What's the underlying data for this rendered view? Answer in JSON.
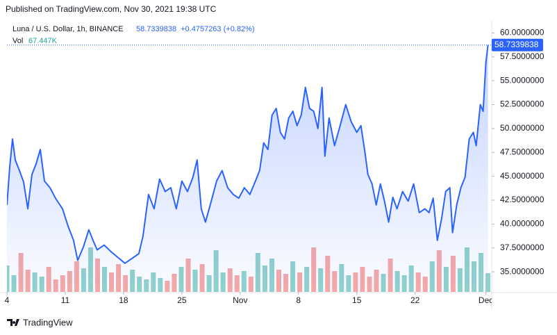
{
  "chart_data": {
    "type": "line",
    "published": "Published on TradingView.com, Nov 30, 2021 19:38 UTC",
    "title": "Luna / U.S. Dollar, 1h, BINANCE",
    "last_price": 58.7339838,
    "change": "+0.4757263 (+0.82%)",
    "brand": "TradingView",
    "xlim": [
      0,
      58.2
    ],
    "xticks": [
      {
        "value": 0,
        "label": "4"
      },
      {
        "value": 7,
        "label": "11"
      },
      {
        "value": 14,
        "label": "18"
      },
      {
        "value": 21,
        "label": "25"
      },
      {
        "value": 28,
        "label": "Nov"
      },
      {
        "value": 35,
        "label": "8"
      },
      {
        "value": 42,
        "label": "15"
      },
      {
        "value": 49,
        "label": "22"
      },
      {
        "value": 57.5,
        "label": "Dec"
      }
    ],
    "ylim": [
      32.9,
      60.9
    ],
    "yticks": [
      {
        "value": 35,
        "label": "35.0000000"
      },
      {
        "value": 37.5,
        "label": "37.5000000"
      },
      {
        "value": 40,
        "label": "40.0000000"
      },
      {
        "value": 42.5,
        "label": "42.5000000"
      },
      {
        "value": 45,
        "label": "45.0000000"
      },
      {
        "value": 47.5,
        "label": "47.5000000"
      },
      {
        "value": 50,
        "label": "50.0000000"
      },
      {
        "value": 52.5,
        "label": "52.5000000"
      },
      {
        "value": 55,
        "label": "55.0000000"
      },
      {
        "value": 57.5,
        "label": "57.5000000"
      },
      {
        "value": 60,
        "label": "60.0000000"
      }
    ],
    "grid": false,
    "x": [
      0,
      0.33,
      0.67,
      1,
      1.5,
      2,
      2.5,
      3,
      3.5,
      4,
      4.5,
      5.17,
      5.83,
      6.67,
      7.33,
      8,
      8.5,
      9.17,
      9.83,
      10.33,
      10.83,
      11.67,
      12.5,
      13.33,
      14.17,
      15,
      15.83,
      16.33,
      17,
      17.67,
      18.33,
      19,
      19.67,
      20.33,
      21,
      21.67,
      22.33,
      22.83,
      23.33,
      23.83,
      24.5,
      25.17,
      25.83,
      26.5,
      27.17,
      27.83,
      28.5,
      29.17,
      29.83,
      30.33,
      30.83,
      31.33,
      31.83,
      32.33,
      32.83,
      33.33,
      33.83,
      34.33,
      34.83,
      35.33,
      35.83,
      36.33,
      36.83,
      37.33,
      37.83,
      38.17,
      38.67,
      39.33,
      40,
      40.67,
      41.33,
      42,
      42.5,
      43,
      43.33,
      43.83,
      44.33,
      44.83,
      45.33,
      45.83,
      46.33,
      46.83,
      47.5,
      48.17,
      48.83,
      49.5,
      50.17,
      50.67,
      51.17,
      51.67,
      52.17,
      52.67,
      53.17,
      53.5,
      54,
      54.5,
      55,
      55.5,
      56,
      56.33,
      56.83,
      57.17,
      57.5,
      57.75
    ],
    "series": [
      {
        "name": "Luna / U.S. Dollar",
        "color": "#2962ff",
        "values": [
          42.0,
          46.0,
          48.9,
          46.7,
          45.6,
          44.4,
          41.6,
          45.2,
          46.3,
          47.8,
          44.5,
          43.8,
          42.7,
          41.6,
          39.8,
          38.3,
          36.2,
          37.6,
          39.4,
          38.3,
          37.3,
          37.8,
          37.1,
          36.5,
          35.9,
          36.4,
          36.9,
          38.7,
          43.1,
          41.6,
          44.7,
          43.4,
          43.8,
          41.6,
          44.5,
          43.4,
          44.9,
          46.7,
          41.6,
          40.2,
          42.3,
          44.5,
          45.6,
          43.8,
          43.1,
          42.7,
          43.8,
          43.1,
          44.5,
          45.6,
          48.5,
          47.8,
          51.4,
          52.1,
          49.6,
          48.9,
          51.1,
          51.8,
          50.3,
          51.4,
          54.3,
          52.1,
          51.8,
          50.0,
          54.3,
          47.1,
          51.1,
          48.2,
          50.3,
          52.5,
          50.7,
          49.6,
          50.3,
          47.4,
          45.2,
          44.2,
          42.0,
          44.2,
          42.4,
          40.2,
          42.8,
          41.6,
          43.4,
          42.4,
          44.2,
          41.2,
          41.6,
          41.2,
          42.7,
          38.3,
          40.5,
          43.4,
          43.8,
          39.1,
          42.0,
          43.8,
          44.9,
          48.9,
          49.6,
          48.2,
          52.5,
          51.8,
          56.9,
          58.7339838
        ]
      }
    ],
    "volume": {
      "name": "Vol",
      "up_color": "#26a69a",
      "down_color": "#ef5350",
      "vlim": [
        0,
        500
      ],
      "last_label": "67.447K",
      "values": [
        95,
        60,
        140,
        80,
        70,
        55,
        90,
        45,
        60,
        75,
        110,
        85,
        160,
        120,
        90,
        70,
        100,
        60,
        80,
        55,
        45,
        70,
        50,
        40,
        65,
        90,
        120,
        80,
        100,
        60,
        150,
        70,
        85,
        60,
        75,
        55,
        140,
        95,
        120,
        80,
        65,
        110,
        70,
        90,
        160,
        85,
        130,
        75,
        100,
        60,
        70,
        90,
        55,
        80,
        65,
        120,
        75,
        60,
        95,
        70,
        55,
        110,
        150,
        90,
        130,
        85,
        160,
        110,
        140,
        67.447
      ]
    }
  }
}
